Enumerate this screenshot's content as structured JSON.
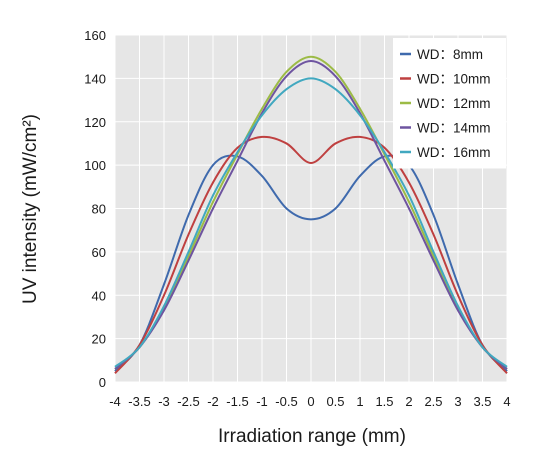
{
  "chart_data": {
    "type": "line",
    "title": "",
    "xlabel": "Irradiation range (mm)",
    "ylabel": "UV intensity (mW/cm²)",
    "xlim": [
      -4,
      4
    ],
    "ylim": [
      0,
      160
    ],
    "xticks": [
      -4,
      -3.5,
      -3,
      -2.5,
      -2,
      -1.5,
      -1,
      -0.5,
      0,
      0.5,
      1,
      1.5,
      2,
      2.5,
      3,
      3.5,
      4
    ],
    "yticks": [
      0,
      20,
      40,
      60,
      80,
      100,
      120,
      140,
      160
    ],
    "grid": true,
    "background": "#e6e6e6",
    "legend_position": "top-right",
    "x": [
      -4,
      -3.5,
      -3,
      -2.5,
      -2,
      -1.5,
      -1,
      -0.5,
      0,
      0.5,
      1,
      1.5,
      2,
      2.5,
      3,
      3.5,
      4
    ],
    "series": [
      {
        "name": "WD：8mm",
        "color": "#3f6aad",
        "values": [
          5,
          17,
          45,
          77,
          100,
          104,
          95,
          80,
          75,
          80,
          95,
          104,
          100,
          77,
          45,
          17,
          5
        ]
      },
      {
        "name": "WD：10mm",
        "color": "#bf4040",
        "values": [
          4,
          17,
          40,
          68,
          92,
          108,
          113,
          110,
          101,
          110,
          113,
          108,
          92,
          68,
          40,
          17,
          4
        ]
      },
      {
        "name": "WD：12mm",
        "color": "#9cbb46",
        "values": [
          6,
          16,
          34,
          58,
          83,
          105,
          126,
          143,
          150,
          143,
          126,
          105,
          83,
          58,
          34,
          16,
          6
        ]
      },
      {
        "name": "WD：14mm",
        "color": "#6e54a0",
        "values": [
          6,
          16,
          33,
          56,
          80,
          102,
          124,
          141,
          148,
          141,
          124,
          102,
          80,
          56,
          33,
          16,
          6
        ]
      },
      {
        "name": "WD：16mm",
        "color": "#41a8c0",
        "values": [
          7,
          16,
          35,
          60,
          86,
          106,
          123,
          135,
          140,
          135,
          123,
          106,
          86,
          60,
          35,
          16,
          7
        ]
      }
    ]
  }
}
